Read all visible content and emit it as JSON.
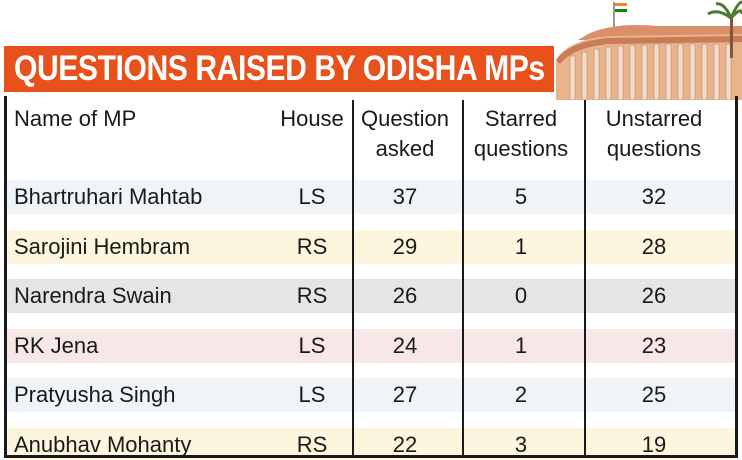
{
  "chart_data": {
    "type": "table",
    "title": "QUESTIONS RAISED BY ODISHA MPs",
    "columns": [
      "Name of MP",
      "House",
      "Question asked",
      "Starred questions",
      "Unstarred questions"
    ],
    "header_lines": [
      [
        "Name of MP"
      ],
      [
        "House"
      ],
      [
        "Question",
        "asked"
      ],
      [
        "Starred",
        "questions"
      ],
      [
        "Unstarred",
        "questions"
      ]
    ],
    "rows": [
      {
        "name": "Bhartruhari Mahtab",
        "house": "LS",
        "asked": "37",
        "starred": "5",
        "unstarred": "32"
      },
      {
        "name": "Sarojini Hembram",
        "house": "RS",
        "asked": "29",
        "starred": "1",
        "unstarred": "28"
      },
      {
        "name": "Narendra Swain",
        "house": "RS",
        "asked": "26",
        "starred": "0",
        "unstarred": "26"
      },
      {
        "name": "RK Jena",
        "house": "LS",
        "asked": "24",
        "starred": "1",
        "unstarred": "23"
      },
      {
        "name": "Pratyusha Singh",
        "house": "LS",
        "asked": "27",
        "starred": "2",
        "unstarred": "25"
      },
      {
        "name": "Anubhav Mohanty",
        "house": "RS",
        "asked": "22",
        "starred": "3",
        "unstarred": "19"
      }
    ]
  },
  "colors": {
    "banner": "#e8501c",
    "row_bands": [
      "#eef4f8",
      "#fdf6de",
      "#e5e5e5",
      "#f7e7e6",
      "#eef4f8",
      "#fdf6de"
    ],
    "sandstone": "#e9b48c",
    "pillar": "#d9c2b0",
    "flag_saffron": "#ff7f1a",
    "flag_green": "#138808"
  },
  "icons": [
    "parliament-building-icon",
    "flag-icon",
    "palm-tree-icon"
  ]
}
